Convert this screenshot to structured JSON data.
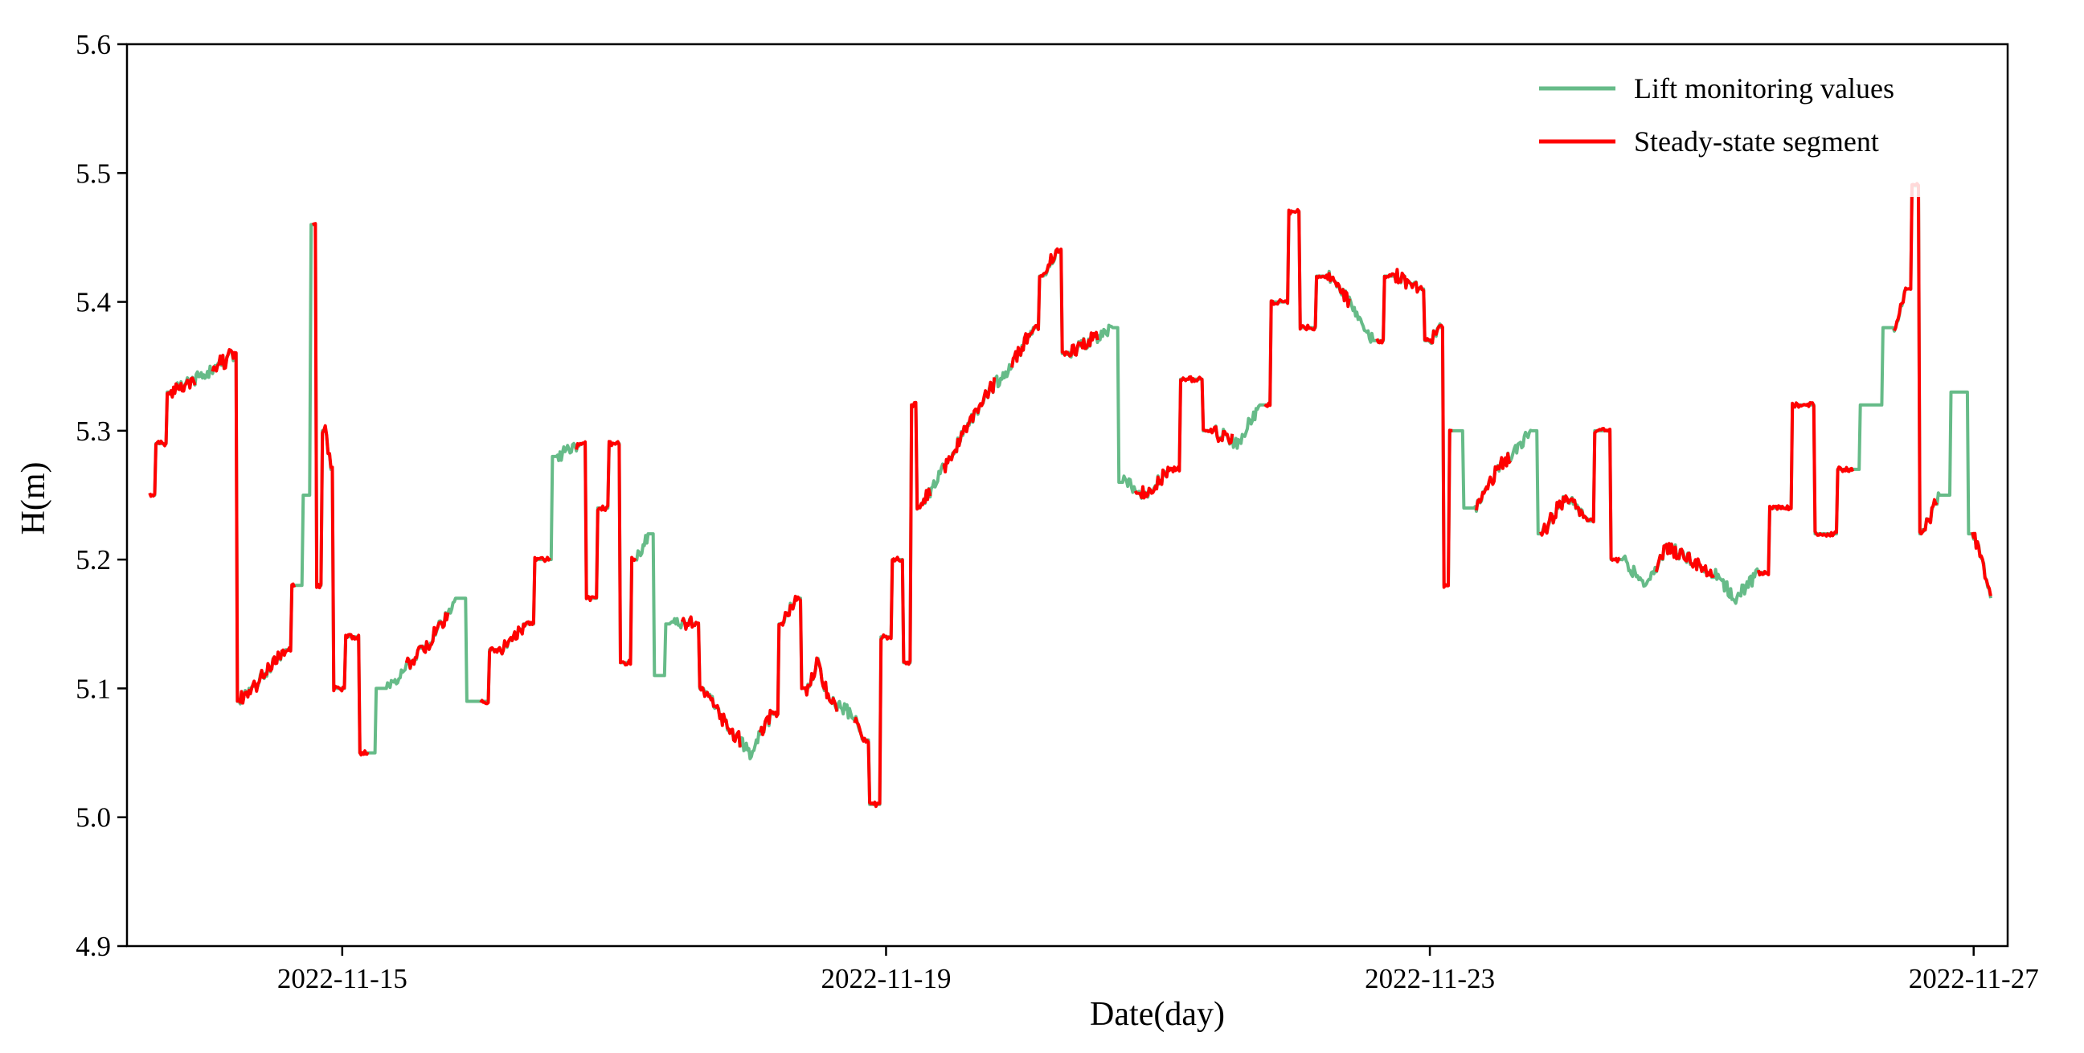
{
  "chart_data": {
    "type": "line",
    "xlabel": "Date(day)",
    "ylabel": "H(m)",
    "ylim": [
      4.9,
      5.6
    ],
    "xlim": [
      "2022-11-13T10:00",
      "2022-11-27T06:00"
    ],
    "x_ticks": [
      "2022-11-15",
      "2022-11-19",
      "2022-11-23",
      "2022-11-27"
    ],
    "y_ticks": [
      "4.9",
      "5.0",
      "5.1",
      "5.2",
      "5.3",
      "5.4",
      "5.5",
      "5.6"
    ],
    "grid": false,
    "legend": {
      "placement": "top-right",
      "entries": [
        "Lift monitoring values",
        "Steady-state segment"
      ]
    },
    "colors": {
      "lift": "#66bb88",
      "steady": "#ff0000"
    },
    "series": [
      {
        "name": "Lift monitoring values",
        "points": [
          [
            "2022-11-13T14:00",
            5.25
          ],
          [
            "2022-11-13T16:00",
            5.29
          ],
          [
            "2022-11-13T18:00",
            5.33
          ],
          [
            "2022-11-13T22:00",
            5.34
          ],
          [
            "2022-11-14T02:00",
            5.35
          ],
          [
            "2022-11-14T05:00",
            5.36
          ],
          [
            "2022-11-14T06:00",
            5.09
          ],
          [
            "2022-11-14T10:00",
            5.11
          ],
          [
            "2022-11-14T14:00",
            5.13
          ],
          [
            "2022-11-14T16:00",
            5.18
          ],
          [
            "2022-11-14T18:00",
            5.25
          ],
          [
            "2022-11-14T19:00",
            5.46
          ],
          [
            "2022-11-14T20:00",
            5.18
          ],
          [
            "2022-11-14T21:00",
            5.3
          ],
          [
            "2022-11-14T22:00",
            5.27
          ],
          [
            "2022-11-14T23:00",
            5.1
          ],
          [
            "2022-11-15T02:00",
            5.14
          ],
          [
            "2022-11-15T04:00",
            5.05
          ],
          [
            "2022-11-15T08:00",
            5.1
          ],
          [
            "2022-11-15T12:00",
            5.12
          ],
          [
            "2022-11-15T16:00",
            5.14
          ],
          [
            "2022-11-15T20:00",
            5.17
          ],
          [
            "2022-11-16T00:00",
            5.09
          ],
          [
            "2022-11-16T04:00",
            5.13
          ],
          [
            "2022-11-16T08:00",
            5.15
          ],
          [
            "2022-11-16T12:00",
            5.2
          ],
          [
            "2022-11-16T14:00",
            5.28
          ],
          [
            "2022-11-16T18:00",
            5.29
          ],
          [
            "2022-11-16T20:00",
            5.17
          ],
          [
            "2022-11-16T22:00",
            5.24
          ],
          [
            "2022-11-17T00:00",
            5.29
          ],
          [
            "2022-11-17T02:00",
            5.12
          ],
          [
            "2022-11-17T04:00",
            5.2
          ],
          [
            "2022-11-17T06:00",
            5.22
          ],
          [
            "2022-11-17T08:00",
            5.11
          ],
          [
            "2022-11-17T10:00",
            5.15
          ],
          [
            "2022-11-17T14:00",
            5.15
          ],
          [
            "2022-11-17T16:00",
            5.1
          ],
          [
            "2022-11-17T20:00",
            5.07
          ],
          [
            "2022-11-18T00:00",
            5.05
          ],
          [
            "2022-11-18T04:00",
            5.08
          ],
          [
            "2022-11-18T06:00",
            5.15
          ],
          [
            "2022-11-18T08:00",
            5.17
          ],
          [
            "2022-11-18T10:00",
            5.1
          ],
          [
            "2022-11-18T12:00",
            5.12
          ],
          [
            "2022-11-18T14:00",
            5.09
          ],
          [
            "2022-11-18T18:00",
            5.08
          ],
          [
            "2022-11-18T20:00",
            5.06
          ],
          [
            "2022-11-18T22:00",
            5.01
          ],
          [
            "2022-11-19T00:00",
            5.14
          ],
          [
            "2022-11-19T02:00",
            5.2
          ],
          [
            "2022-11-19T04:00",
            5.12
          ],
          [
            "2022-11-19T05:00",
            5.32
          ],
          [
            "2022-11-19T06:00",
            5.24
          ],
          [
            "2022-11-19T10:00",
            5.27
          ],
          [
            "2022-11-19T14:00",
            5.3
          ],
          [
            "2022-11-19T18:00",
            5.33
          ],
          [
            "2022-11-19T22:00",
            5.35
          ],
          [
            "2022-11-20T02:00",
            5.38
          ],
          [
            "2022-11-20T04:00",
            5.42
          ],
          [
            "2022-11-20T06:00",
            5.44
          ],
          [
            "2022-11-20T08:00",
            5.36
          ],
          [
            "2022-11-20T12:00",
            5.37
          ],
          [
            "2022-11-20T16:00",
            5.38
          ],
          [
            "2022-11-20T18:00",
            5.26
          ],
          [
            "2022-11-20T22:00",
            5.25
          ],
          [
            "2022-11-21T02:00",
            5.27
          ],
          [
            "2022-11-21T06:00",
            5.34
          ],
          [
            "2022-11-21T10:00",
            5.3
          ],
          [
            "2022-11-21T14:00",
            5.29
          ],
          [
            "2022-11-21T18:00",
            5.32
          ],
          [
            "2022-11-21T22:00",
            5.4
          ],
          [
            "2022-11-22T00:00",
            5.47
          ],
          [
            "2022-11-22T02:00",
            5.38
          ],
          [
            "2022-11-22T06:00",
            5.42
          ],
          [
            "2022-11-22T10:00",
            5.4
          ],
          [
            "2022-11-22T14:00",
            5.37
          ],
          [
            "2022-11-22T18:00",
            5.42
          ],
          [
            "2022-11-22T22:00",
            5.41
          ],
          [
            "2022-11-23T00:00",
            5.37
          ],
          [
            "2022-11-23T02:00",
            5.38
          ],
          [
            "2022-11-23T03:00",
            5.18
          ],
          [
            "2022-11-23T04:00",
            5.3
          ],
          [
            "2022-11-23T08:00",
            5.24
          ],
          [
            "2022-11-23T12:00",
            5.27
          ],
          [
            "2022-11-23T16:00",
            5.29
          ],
          [
            "2022-11-23T18:00",
            5.3
          ],
          [
            "2022-11-23T20:00",
            5.22
          ],
          [
            "2022-11-24T00:00",
            5.25
          ],
          [
            "2022-11-24T04:00",
            5.23
          ],
          [
            "2022-11-24T06:00",
            5.3
          ],
          [
            "2022-11-24T10:00",
            5.2
          ],
          [
            "2022-11-24T14:00",
            5.18
          ],
          [
            "2022-11-24T18:00",
            5.21
          ],
          [
            "2022-11-24T22:00",
            5.2
          ],
          [
            "2022-11-25T02:00",
            5.19
          ],
          [
            "2022-11-25T06:00",
            5.17
          ],
          [
            "2022-11-25T10:00",
            5.19
          ],
          [
            "2022-11-25T14:00",
            5.24
          ],
          [
            "2022-11-25T18:00",
            5.32
          ],
          [
            "2022-11-25T22:00",
            5.22
          ],
          [
            "2022-11-26T02:00",
            5.27
          ],
          [
            "2022-11-26T06:00",
            5.32
          ],
          [
            "2022-11-26T10:00",
            5.38
          ],
          [
            "2022-11-26T12:00",
            5.41
          ],
          [
            "2022-11-26T14:00",
            5.49
          ],
          [
            "2022-11-26T15:00",
            5.22
          ],
          [
            "2022-11-26T18:00",
            5.25
          ],
          [
            "2022-11-26T22:00",
            5.33
          ],
          [
            "2022-11-27T00:00",
            5.22
          ],
          [
            "2022-11-27T02:00",
            5.19
          ],
          [
            "2022-11-27T03:00",
            5.17
          ]
        ]
      }
    ]
  }
}
